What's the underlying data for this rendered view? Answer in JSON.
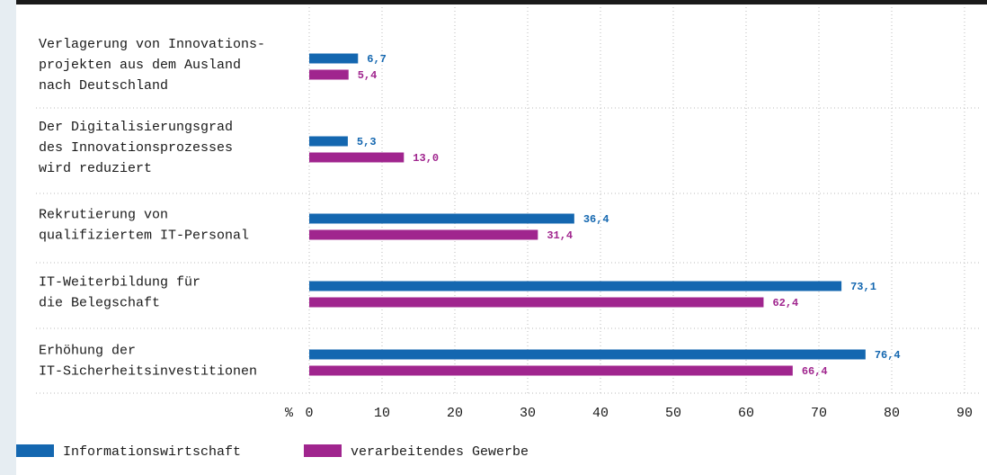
{
  "chart_data": {
    "type": "hbar",
    "categories": [
      "Verlagerung von Innovations-\nprojekten aus dem Ausland\nnach Deutschland",
      "Der Digitalisierungsgrad\ndes Innovationsprozesses\nwird reduziert",
      "Rekrutierung von\nqualifiziertem IT-Personal",
      "IT-Weiterbildung für\ndie Belegschaft",
      "Erhöhung der\nIT-Sicherheitsinvestitionen"
    ],
    "series": [
      {
        "name": "Informationswirtschaft",
        "color": "#1467b0",
        "values": [
          6.7,
          5.3,
          36.4,
          73.1,
          76.4
        ],
        "value_labels": [
          "6,7",
          "5,3",
          "36,4",
          "73,1",
          "76,4"
        ]
      },
      {
        "name": "verarbeitendes Gewerbe",
        "color": "#a0258e",
        "values": [
          5.4,
          13.0,
          31.4,
          62.4,
          66.4
        ],
        "value_labels": [
          "5,4",
          "13,0",
          "31,4",
          "62,4",
          "66,4"
        ]
      }
    ],
    "xlabel": "%",
    "xlim": [
      0,
      90
    ],
    "xticks": [
      0,
      10,
      20,
      30,
      40,
      50,
      60,
      70,
      80,
      90
    ],
    "grid": true,
    "legend": "bottom"
  }
}
